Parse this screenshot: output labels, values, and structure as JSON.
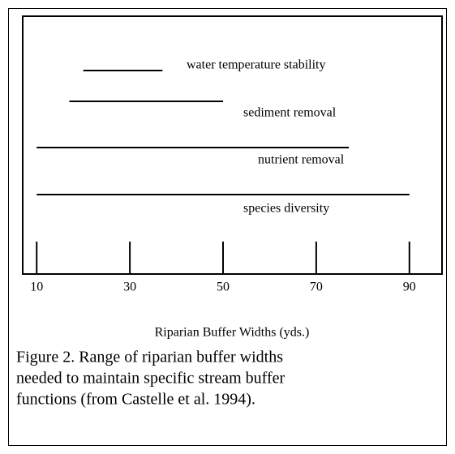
{
  "chart_data": {
    "type": "range",
    "categories": [
      "water temperature stability",
      "sediment removal",
      "nutrient removal",
      "species diversity"
    ],
    "starts": [
      20,
      17,
      10,
      10
    ],
    "ends": [
      37,
      50,
      77,
      90
    ],
    "color": "#000000",
    "xlabel": "Riparian Buffer Widths (yds.)",
    "xlim": [
      7,
      97
    ],
    "xticks": [
      10,
      30,
      50,
      70,
      90
    ],
    "caption": [
      "Figure 2.  Range of riparian buffer widths",
      "needed to maintain specific stream buffer",
      "functions (from Castelle et al. 1994)."
    ]
  }
}
